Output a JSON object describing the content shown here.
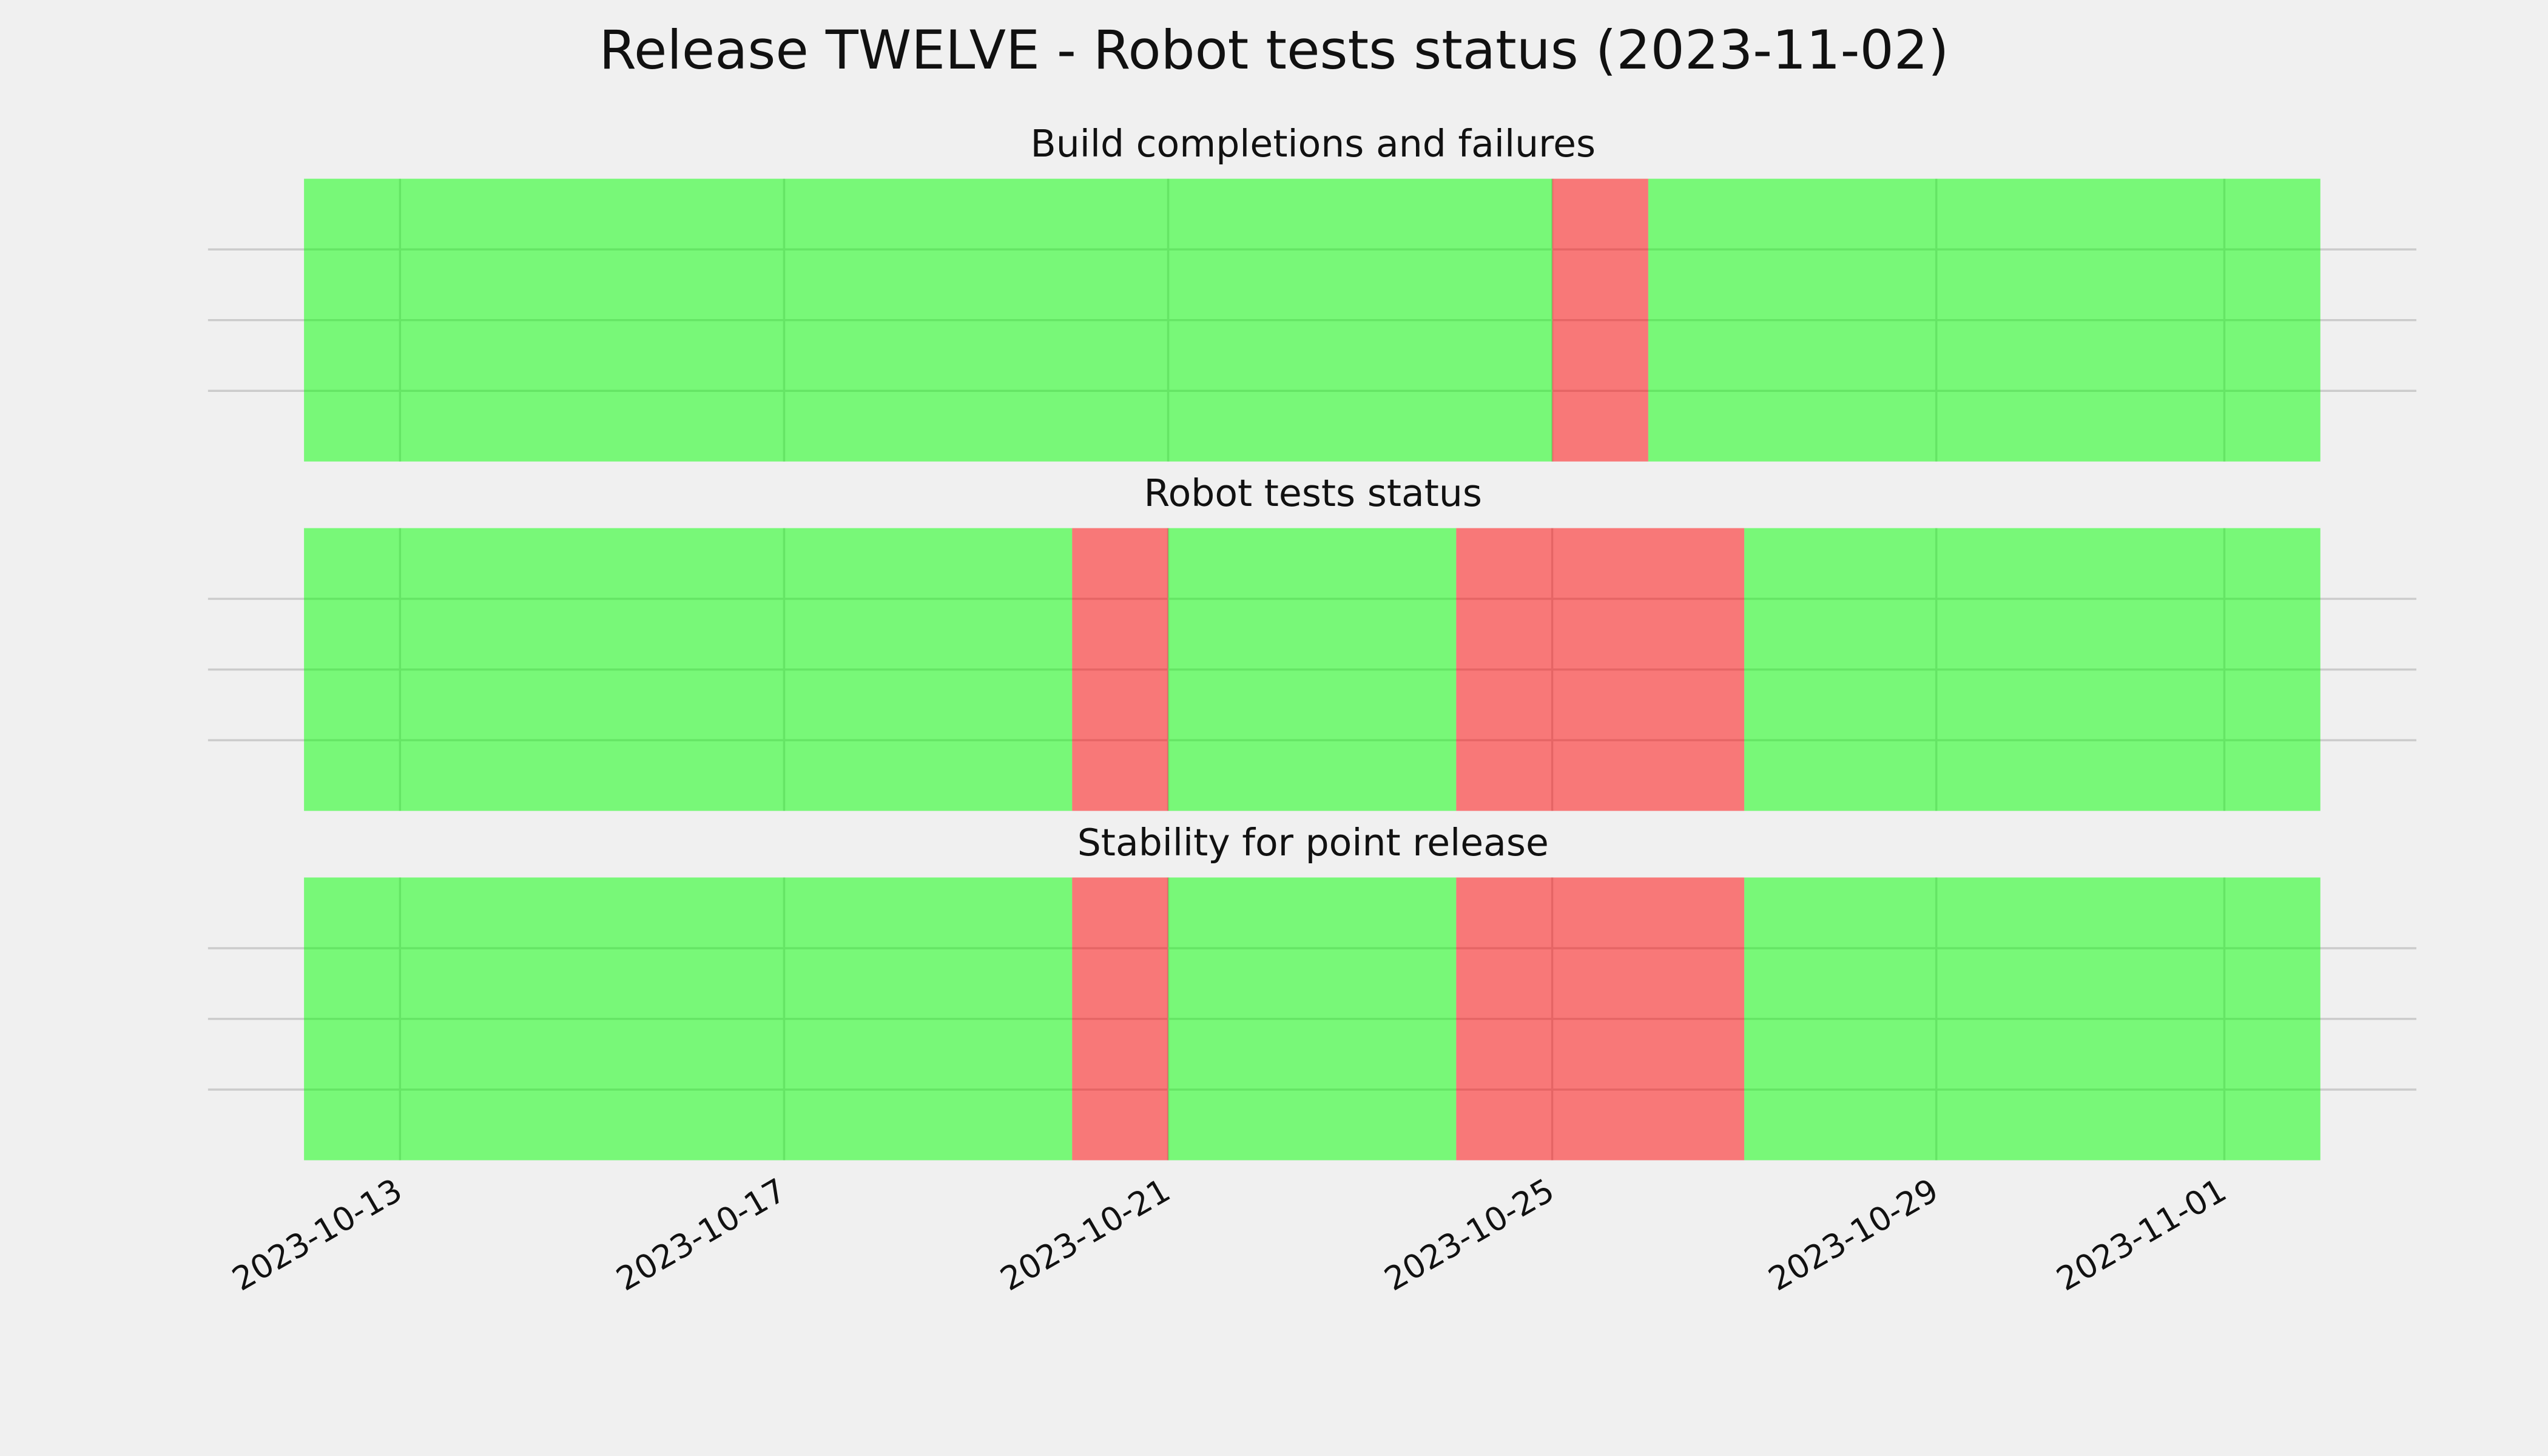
{
  "chart_data": {
    "type": "timeline",
    "title": "Release TWELVE - Robot tests status (2023-11-02)",
    "xlim": [
      "2023-10-11",
      "2023-11-03"
    ],
    "xticks": [
      "2023-10-13",
      "2023-10-17",
      "2023-10-21",
      "2023-10-25",
      "2023-10-29",
      "2023-11-01"
    ],
    "ylim": [
      0,
      1
    ],
    "yticks": [
      0.25,
      0.5,
      0.75
    ],
    "grid": true,
    "opacity": 0.5,
    "panels": [
      {
        "title": "Build completions and failures",
        "segments": [
          {
            "start": "2023-10-12",
            "end": "2023-10-25",
            "color": "#00ff00"
          },
          {
            "start": "2023-10-25",
            "end": "2023-10-26",
            "color": "#ff0000"
          },
          {
            "start": "2023-10-26",
            "end": "2023-11-02",
            "color": "#00ff00"
          }
        ]
      },
      {
        "title": "Robot tests status",
        "segments": [
          {
            "start": "2023-10-12",
            "end": "2023-10-20",
            "color": "#00ff00"
          },
          {
            "start": "2023-10-20",
            "end": "2023-10-21",
            "color": "#ff0000"
          },
          {
            "start": "2023-10-21",
            "end": "2023-10-24",
            "color": "#00ff00"
          },
          {
            "start": "2023-10-24",
            "end": "2023-10-27",
            "color": "#ff0000"
          },
          {
            "start": "2023-10-27",
            "end": "2023-11-02",
            "color": "#00ff00"
          }
        ]
      },
      {
        "title": "Stability for point release",
        "segments": [
          {
            "start": "2023-10-12",
            "end": "2023-10-20",
            "color": "#00ff00"
          },
          {
            "start": "2023-10-20",
            "end": "2023-10-21",
            "color": "#ff0000"
          },
          {
            "start": "2023-10-21",
            "end": "2023-10-24",
            "color": "#00ff00"
          },
          {
            "start": "2023-10-24",
            "end": "2023-10-27",
            "color": "#ff0000"
          },
          {
            "start": "2023-10-27",
            "end": "2023-11-02",
            "color": "#00ff00"
          }
        ]
      }
    ]
  }
}
